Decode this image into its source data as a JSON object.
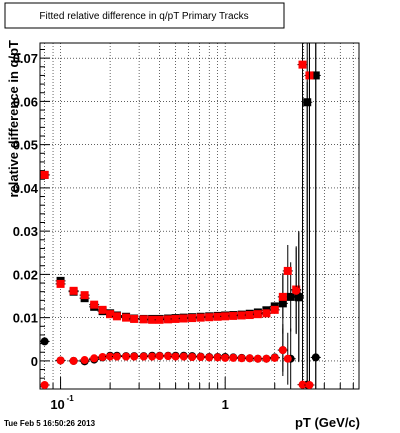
{
  "chart_data": {
    "type": "scatter",
    "title": "Fitted relative difference in q/pT  Primary Tracks",
    "xlabel": "pT (GeV/c)",
    "ylabel": "relative difference in q/pT",
    "x_scale": "log",
    "xlim": [
      0.075,
      6.5
    ],
    "ylim": [
      -0.0065,
      0.0735
    ],
    "grid": true,
    "legend": "none",
    "x_ticks": [
      {
        "value": 0.1,
        "label": "10",
        "exp": "-1"
      },
      {
        "value": 1,
        "label": "1",
        "exp": ""
      }
    ],
    "y_ticks": [
      {
        "value": 0,
        "label": "0"
      },
      {
        "value": 0.01,
        "label": "0.01"
      },
      {
        "value": 0.02,
        "label": "0.02"
      },
      {
        "value": 0.03,
        "label": "0.03"
      },
      {
        "value": 0.04,
        "label": "0.04"
      },
      {
        "value": 0.05,
        "label": "0.05"
      },
      {
        "value": 0.06,
        "label": "0.06"
      },
      {
        "value": 0.07,
        "label": "0.07"
      }
    ],
    "series": [
      {
        "marker": "square",
        "color": "#000000",
        "x": [
          0.08,
          0.1,
          0.12,
          0.14,
          0.16,
          0.18,
          0.2,
          0.22,
          0.25,
          0.28,
          0.32,
          0.36,
          0.4,
          0.45,
          0.5,
          0.56,
          0.63,
          0.71,
          0.8,
          0.9,
          1.0,
          1.12,
          1.26,
          1.41,
          1.58,
          1.78,
          2.0,
          2.24,
          2.5,
          2.8,
          3.15,
          3.55
        ],
        "y": [
          0.043,
          0.0185,
          0.016,
          0.0145,
          0.0125,
          0.0115,
          0.011,
          0.0105,
          0.0102,
          0.0098,
          0.0097,
          0.0097,
          0.0097,
          0.0098,
          0.0099,
          0.01,
          0.0101,
          0.0102,
          0.0103,
          0.0104,
          0.0105,
          0.0106,
          0.0107,
          0.0109,
          0.0112,
          0.0117,
          0.0126,
          0.0133,
          0.0148,
          0.0147,
          0.0598,
          0.066
        ],
        "err": [
          0,
          0.0008,
          0.0005,
          0.0004,
          0.0003,
          0,
          0,
          0,
          0,
          0,
          0,
          0,
          0,
          0,
          0,
          0,
          0,
          0,
          0,
          0,
          0,
          0,
          0,
          0,
          0,
          0,
          0,
          0.007,
          0.008,
          0.015,
          0.07,
          0.09
        ]
      },
      {
        "marker": "square",
        "color": "#ff0000",
        "x": [
          0.08,
          0.1,
          0.12,
          0.14,
          0.16,
          0.18,
          0.2,
          0.22,
          0.25,
          0.28,
          0.32,
          0.36,
          0.4,
          0.45,
          0.5,
          0.56,
          0.63,
          0.71,
          0.8,
          0.9,
          1.0,
          1.12,
          1.26,
          1.41,
          1.58,
          1.78,
          2.0,
          2.24,
          2.4,
          2.7,
          2.95,
          3.25
        ],
        "y": [
          0.043,
          0.0178,
          0.0162,
          0.0152,
          0.013,
          0.0118,
          0.0108,
          0.0103,
          0.01,
          0.0097,
          0.0096,
          0.0095,
          0.0095,
          0.0096,
          0.0097,
          0.0098,
          0.0099,
          0.01,
          0.0101,
          0.0102,
          0.0103,
          0.0104,
          0.0105,
          0.0106,
          0.0108,
          0.011,
          0.0118,
          0.0148,
          0.0208,
          0.0165,
          0.0685,
          0.066
        ],
        "err": [
          0,
          0.0006,
          0.0005,
          0.0004,
          0.0003,
          0,
          0,
          0,
          0,
          0,
          0,
          0,
          0,
          0,
          0,
          0,
          0,
          0,
          0,
          0,
          0,
          0,
          0,
          0,
          0,
          0,
          0,
          0.005,
          0.006,
          0.01,
          0.07,
          0.08
        ]
      },
      {
        "marker": "circle",
        "color": "#000000",
        "x": [
          0.08,
          0.1,
          0.12,
          0.14,
          0.16,
          0.18,
          0.2,
          0.22,
          0.25,
          0.28,
          0.32,
          0.36,
          0.4,
          0.45,
          0.5,
          0.56,
          0.63,
          0.71,
          0.8,
          0.9,
          1.0,
          1.12,
          1.26,
          1.41,
          1.58,
          1.78,
          2.0,
          2.24,
          2.5,
          2.8,
          3.15,
          3.55
        ],
        "y": [
          0.0045,
          0.0001,
          0.0,
          -0.0001,
          0.0003,
          0.0008,
          0.0012,
          0.0012,
          0.0011,
          0.0011,
          0.0011,
          0.0012,
          0.0012,
          0.0012,
          0.0012,
          0.0012,
          0.0011,
          0.001,
          0.0009,
          0.0009,
          0.0009,
          0.0008,
          0.0007,
          0.0006,
          0.0005,
          0.0005,
          0.0008,
          0.0025,
          0.0005,
          0.015,
          -0.0055,
          0.0008
        ],
        "err": [
          0,
          0,
          0,
          0,
          0,
          0,
          0,
          0,
          0,
          0,
          0,
          0,
          0,
          0,
          0,
          0,
          0,
          0,
          0,
          0,
          0,
          0,
          0,
          0,
          0,
          0,
          0,
          0.006,
          0.007,
          0.015,
          0.07,
          0.09
        ]
      },
      {
        "marker": "circle",
        "color": "#ff0000",
        "x": [
          0.08,
          0.1,
          0.12,
          0.14,
          0.16,
          0.18,
          0.2,
          0.22,
          0.25,
          0.28,
          0.32,
          0.36,
          0.4,
          0.45,
          0.5,
          0.56,
          0.63,
          0.71,
          0.8,
          0.9,
          1.0,
          1.12,
          1.26,
          1.41,
          1.58,
          1.78,
          2.0,
          2.24,
          2.4,
          2.7,
          2.95,
          3.25
        ],
        "y": [
          -0.0058,
          0.0001,
          0.0,
          0.0002,
          0.0006,
          0.0009,
          0.001,
          0.001,
          0.001,
          0.001,
          0.001,
          0.001,
          0.0011,
          0.0011,
          0.001,
          0.001,
          0.0009,
          0.0009,
          0.0008,
          0.0008,
          0.0007,
          0.0007,
          0.0006,
          0.0006,
          0.0005,
          0.0005,
          0.0007,
          0.0025,
          0.0005,
          0.0162,
          -0.0055,
          -0.0058
        ],
        "err": [
          0,
          0,
          0,
          0,
          0,
          0,
          0,
          0,
          0,
          0,
          0,
          0,
          0,
          0,
          0,
          0,
          0,
          0,
          0,
          0,
          0,
          0,
          0,
          0,
          0,
          0,
          0,
          0.005,
          0.006,
          0.01,
          0.07,
          0.08
        ]
      }
    ]
  },
  "footer": {
    "timestamp": "Tue Feb  5 16:50:26 2013"
  }
}
